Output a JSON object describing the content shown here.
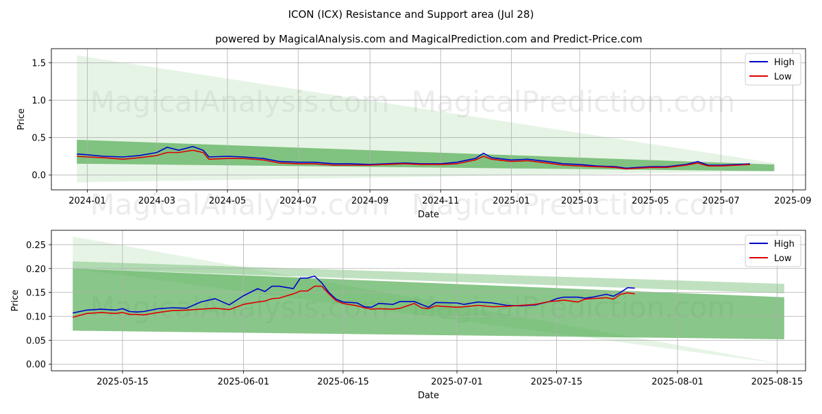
{
  "page": {
    "title": "ICON (ICX) Resistance and Support area (Jul 28)",
    "subtitle": "powered by MagicalAnalysis.com and MagicalPrediction.com and Predict-Price.com"
  },
  "watermarks": [
    "MagicalAnalysis.com",
    "MagicalPrediction.com"
  ],
  "colors": {
    "high": "#0000cc",
    "low": "#dd0000",
    "band": "#4aa84a",
    "band_light": "#a5d6a5",
    "grid": "#b0b0b0"
  },
  "chart_data": [
    {
      "type": "line",
      "xlabel": "Date",
      "ylabel": "Price",
      "x_ticks": [
        "2024-01",
        "2024-03",
        "2024-05",
        "2024-07",
        "2024-09",
        "2024-11",
        "2025-01",
        "2025-03",
        "2025-05",
        "2025-07",
        "2025-09"
      ],
      "y_ticks": [
        "0.0",
        "0.5",
        "1.0",
        "1.5"
      ],
      "xlim": [
        "2023-12-01",
        "2025-09-12"
      ],
      "ylim": [
        -0.2,
        1.69
      ],
      "grid": true,
      "legend_position": "top-right",
      "legend": [
        "High",
        "Low"
      ],
      "x_dates": [
        "2023-12-23",
        "2024-01-01",
        "2024-01-15",
        "2024-02-01",
        "2024-02-15",
        "2024-03-01",
        "2024-03-10",
        "2024-03-20",
        "2024-04-01",
        "2024-04-10",
        "2024-04-15",
        "2024-05-01",
        "2024-05-15",
        "2024-06-01",
        "2024-06-15",
        "2024-07-01",
        "2024-07-15",
        "2024-08-01",
        "2024-08-15",
        "2024-09-01",
        "2024-09-15",
        "2024-10-01",
        "2024-10-15",
        "2024-11-01",
        "2024-11-15",
        "2024-12-01",
        "2024-12-08",
        "2024-12-15",
        "2025-01-01",
        "2025-01-15",
        "2025-02-01",
        "2025-02-15",
        "2025-03-01",
        "2025-03-15",
        "2025-04-01",
        "2025-04-10",
        "2025-04-20",
        "2025-05-01",
        "2025-05-15",
        "2025-06-01",
        "2025-06-11",
        "2025-06-20",
        "2025-07-01",
        "2025-07-15",
        "2025-07-26"
      ],
      "series": [
        {
          "name": "High",
          "values": [
            0.28,
            0.27,
            0.25,
            0.24,
            0.26,
            0.3,
            0.37,
            0.33,
            0.38,
            0.33,
            0.24,
            0.25,
            0.24,
            0.22,
            0.18,
            0.17,
            0.17,
            0.15,
            0.15,
            0.14,
            0.15,
            0.16,
            0.15,
            0.15,
            0.17,
            0.22,
            0.29,
            0.23,
            0.2,
            0.21,
            0.18,
            0.15,
            0.14,
            0.12,
            0.11,
            0.09,
            0.1,
            0.11,
            0.11,
            0.14,
            0.18,
            0.13,
            0.13,
            0.14,
            0.15
          ]
        },
        {
          "name": "Low",
          "values": [
            0.25,
            0.24,
            0.23,
            0.21,
            0.23,
            0.26,
            0.3,
            0.3,
            0.33,
            0.3,
            0.21,
            0.22,
            0.22,
            0.2,
            0.16,
            0.15,
            0.15,
            0.13,
            0.13,
            0.13,
            0.14,
            0.15,
            0.14,
            0.14,
            0.15,
            0.2,
            0.25,
            0.21,
            0.18,
            0.19,
            0.16,
            0.13,
            0.12,
            0.11,
            0.1,
            0.08,
            0.09,
            0.1,
            0.1,
            0.13,
            0.16,
            0.12,
            0.12,
            0.13,
            0.14
          ]
        }
      ],
      "bands": [
        {
          "shade": "light",
          "x": [
            "2023-12-23",
            "2025-08-16"
          ],
          "upper": [
            1.6,
            0.16
          ],
          "lower": [
            -0.1,
            0.05
          ]
        },
        {
          "shade": "dark",
          "x": [
            "2023-12-23",
            "2025-08-16"
          ],
          "upper": [
            0.47,
            0.14
          ],
          "lower": [
            0.15,
            0.05
          ]
        }
      ]
    },
    {
      "type": "line",
      "xlabel": "Date",
      "ylabel": "Price",
      "x_ticks": [
        "2025-05-15",
        "2025-06-01",
        "2025-06-15",
        "2025-07-01",
        "2025-07-15",
        "2025-08-01",
        "2025-08-15"
      ],
      "y_ticks": [
        "0.00",
        "0.05",
        "0.10",
        "0.15",
        "0.20",
        "0.25"
      ],
      "xlim": [
        "2025-05-05",
        "2025-08-19"
      ],
      "ylim": [
        -0.014,
        0.28
      ],
      "grid": true,
      "legend_position": "top-right",
      "legend": [
        "High",
        "Low"
      ],
      "x_dates": [
        "2025-05-08",
        "2025-05-10",
        "2025-05-12",
        "2025-05-14",
        "2025-05-15",
        "2025-05-16",
        "2025-05-17",
        "2025-05-18",
        "2025-05-20",
        "2025-05-22",
        "2025-05-24",
        "2025-05-26",
        "2025-05-28",
        "2025-05-30",
        "2025-06-01",
        "2025-06-03",
        "2025-06-04",
        "2025-06-05",
        "2025-06-06",
        "2025-06-08",
        "2025-06-09",
        "2025-06-10",
        "2025-06-11",
        "2025-06-12",
        "2025-06-13",
        "2025-06-14",
        "2025-06-15",
        "2025-06-17",
        "2025-06-18",
        "2025-06-19",
        "2025-06-20",
        "2025-06-22",
        "2025-06-23",
        "2025-06-25",
        "2025-06-26",
        "2025-06-27",
        "2025-06-28",
        "2025-07-01",
        "2025-07-02",
        "2025-07-04",
        "2025-07-06",
        "2025-07-08",
        "2025-07-10",
        "2025-07-12",
        "2025-07-14",
        "2025-07-15",
        "2025-07-16",
        "2025-07-18",
        "2025-07-19",
        "2025-07-20",
        "2025-07-22",
        "2025-07-23",
        "2025-07-24",
        "2025-07-25",
        "2025-07-26"
      ],
      "series": [
        {
          "name": "High",
          "values": [
            0.107,
            0.113,
            0.115,
            0.113,
            0.116,
            0.11,
            0.109,
            0.11,
            0.116,
            0.118,
            0.117,
            0.13,
            0.137,
            0.124,
            0.143,
            0.158,
            0.152,
            0.163,
            0.163,
            0.158,
            0.18,
            0.18,
            0.184,
            0.17,
            0.15,
            0.136,
            0.13,
            0.128,
            0.12,
            0.119,
            0.127,
            0.125,
            0.131,
            0.131,
            0.125,
            0.119,
            0.129,
            0.128,
            0.125,
            0.13,
            0.128,
            0.123,
            0.122,
            0.124,
            0.131,
            0.137,
            0.14,
            0.14,
            0.138,
            0.14,
            0.146,
            0.142,
            0.15,
            0.16,
            0.159
          ]
        },
        {
          "name": "Low",
          "values": [
            0.098,
            0.106,
            0.108,
            0.106,
            0.108,
            0.104,
            0.104,
            0.103,
            0.108,
            0.112,
            0.113,
            0.115,
            0.117,
            0.114,
            0.125,
            0.13,
            0.132,
            0.137,
            0.138,
            0.147,
            0.153,
            0.153,
            0.163,
            0.163,
            0.147,
            0.133,
            0.127,
            0.122,
            0.118,
            0.115,
            0.116,
            0.115,
            0.117,
            0.127,
            0.118,
            0.116,
            0.122,
            0.119,
            0.12,
            0.123,
            0.12,
            0.121,
            0.123,
            0.125,
            0.131,
            0.132,
            0.134,
            0.13,
            0.136,
            0.137,
            0.139,
            0.136,
            0.146,
            0.149,
            0.147
          ]
        }
      ],
      "bands": [
        {
          "shade": "light",
          "x": [
            "2025-05-08",
            "2025-08-16"
          ],
          "upper": [
            0.267,
            0.0
          ],
          "lower": [
            0.2,
            0.0
          ]
        },
        {
          "shade": "mid",
          "x": [
            "2025-05-08",
            "2025-08-16"
          ],
          "upper": [
            0.215,
            0.168
          ],
          "lower": [
            0.2,
            0.148
          ]
        },
        {
          "shade": "dark",
          "x": [
            "2025-05-08",
            "2025-08-16"
          ],
          "upper": [
            0.2,
            0.14
          ],
          "lower": [
            0.07,
            0.052
          ]
        }
      ]
    }
  ]
}
